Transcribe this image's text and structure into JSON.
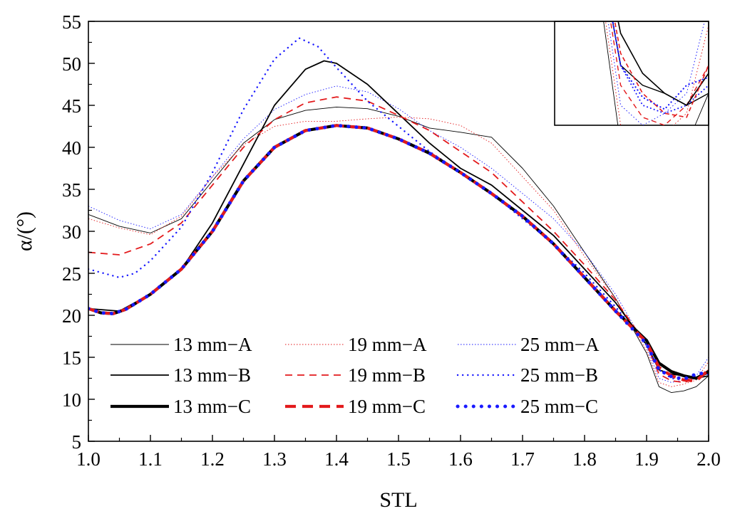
{
  "chart_data": {
    "type": "line",
    "title": "",
    "xlabel": "STL",
    "ylabel": "α/(°)",
    "xlim": [
      1.0,
      2.0
    ],
    "ylim": [
      5,
      55
    ],
    "xticks": [
      "1.0",
      "1.1",
      "1.2",
      "1.3",
      "1.4",
      "1.5",
      "1.6",
      "1.7",
      "1.8",
      "1.9",
      "2.0"
    ],
    "yticks": [
      "5",
      "10",
      "15",
      "20",
      "25",
      "30",
      "35",
      "40",
      "45",
      "50",
      "55"
    ],
    "grid": false,
    "legend_position": "bottom-left",
    "inset": true,
    "series": [
      {
        "name": "13 mm−A",
        "color": "#000000",
        "style": "thin-solid",
        "x": [
          1.0,
          1.05,
          1.1,
          1.15,
          1.2,
          1.25,
          1.3,
          1.35,
          1.4,
          1.45,
          1.5,
          1.55,
          1.6,
          1.65,
          1.7,
          1.75,
          1.8,
          1.85,
          1.9,
          1.92,
          1.94,
          1.96,
          1.98,
          2.0
        ],
        "y": [
          32.0,
          30.6,
          29.8,
          31.5,
          36.0,
          40.5,
          43.3,
          44.4,
          44.8,
          44.6,
          43.7,
          42.3,
          41.8,
          41.2,
          37.5,
          33.0,
          27.5,
          22.0,
          15.5,
          11.5,
          10.8,
          11.0,
          11.5,
          12.8
        ]
      },
      {
        "name": "19 mm−A",
        "color": "#e31a1c",
        "style": "thin-dotted",
        "x": [
          1.0,
          1.05,
          1.1,
          1.15,
          1.2,
          1.25,
          1.3,
          1.35,
          1.4,
          1.45,
          1.5,
          1.55,
          1.6,
          1.65,
          1.7,
          1.75,
          1.8,
          1.85,
          1.9,
          1.92,
          1.94,
          1.96,
          1.98,
          2.0
        ],
        "y": [
          31.5,
          30.4,
          29.6,
          31.8,
          36.5,
          40.3,
          42.5,
          43.1,
          43.1,
          43.4,
          43.6,
          43.4,
          42.6,
          40.5,
          36.5,
          32.5,
          27.0,
          22.0,
          15.8,
          12.0,
          11.5,
          11.8,
          12.3,
          14.5
        ]
      },
      {
        "name": "25 mm−A",
        "color": "#1a1aff",
        "style": "thin-dotted",
        "x": [
          1.0,
          1.05,
          1.1,
          1.15,
          1.2,
          1.25,
          1.3,
          1.35,
          1.4,
          1.45,
          1.5,
          1.55,
          1.6,
          1.65,
          1.7,
          1.75,
          1.8,
          1.85,
          1.9,
          1.92,
          1.94,
          1.96,
          1.98,
          2.0
        ],
        "y": [
          33.0,
          31.3,
          30.3,
          32.0,
          36.5,
          41.0,
          44.5,
          46.3,
          47.3,
          46.6,
          44.6,
          42.0,
          40.0,
          37.5,
          34.5,
          31.5,
          27.5,
          22.5,
          16.2,
          12.5,
          12.0,
          12.3,
          12.8,
          15.0
        ]
      },
      {
        "name": "13 mm−B",
        "color": "#000000",
        "style": "medium-solid",
        "x": [
          1.0,
          1.05,
          1.1,
          1.15,
          1.2,
          1.25,
          1.3,
          1.35,
          1.38,
          1.4,
          1.45,
          1.5,
          1.55,
          1.6,
          1.65,
          1.7,
          1.75,
          1.8,
          1.85,
          1.9,
          1.92,
          1.94,
          1.96,
          1.98,
          2.0
        ],
        "y": [
          20.8,
          20.5,
          22.5,
          25.5,
          31.0,
          38.0,
          45.0,
          49.3,
          50.3,
          50.0,
          47.5,
          44.0,
          40.5,
          37.5,
          35.5,
          32.5,
          29.5,
          25.5,
          21.5,
          16.5,
          13.5,
          13.0,
          12.8,
          12.5,
          12.8
        ]
      },
      {
        "name": "19 mm−B",
        "color": "#e31a1c",
        "style": "medium-dashed",
        "x": [
          1.0,
          1.05,
          1.1,
          1.15,
          1.2,
          1.25,
          1.3,
          1.35,
          1.4,
          1.45,
          1.5,
          1.55,
          1.6,
          1.65,
          1.7,
          1.75,
          1.8,
          1.85,
          1.9,
          1.92,
          1.94,
          1.96,
          1.98,
          2.0
        ],
        "y": [
          27.5,
          27.2,
          28.5,
          31.0,
          35.5,
          40.0,
          43.3,
          45.3,
          46.0,
          45.5,
          43.8,
          42.0,
          39.5,
          37.0,
          33.5,
          30.0,
          26.0,
          21.8,
          16.5,
          13.0,
          12.2,
          12.0,
          12.5,
          13.5
        ]
      },
      {
        "name": "25 mm−B",
        "color": "#1a1aff",
        "style": "medium-dotted",
        "x": [
          1.0,
          1.025,
          1.05,
          1.075,
          1.1,
          1.15,
          1.2,
          1.25,
          1.3,
          1.34,
          1.37,
          1.4,
          1.45,
          1.5,
          1.55,
          1.6,
          1.65,
          1.7,
          1.75,
          1.8,
          1.85,
          1.9,
          1.92,
          1.94,
          1.96,
          1.98,
          2.0
        ],
        "y": [
          25.5,
          25.0,
          24.5,
          25.0,
          26.5,
          30.5,
          37.0,
          44.5,
          50.5,
          53.0,
          52.0,
          49.5,
          45.5,
          42.5,
          39.5,
          37.0,
          34.5,
          31.5,
          28.5,
          25.0,
          21.0,
          16.5,
          13.5,
          12.5,
          12.3,
          12.5,
          13.0
        ]
      },
      {
        "name": "13 mm−C",
        "color": "#000000",
        "style": "thick-solid",
        "x": [
          1.0,
          1.02,
          1.04,
          1.06,
          1.1,
          1.15,
          1.2,
          1.25,
          1.3,
          1.35,
          1.4,
          1.45,
          1.5,
          1.55,
          1.6,
          1.65,
          1.7,
          1.75,
          1.8,
          1.85,
          1.9,
          1.92,
          1.94,
          1.96,
          1.98,
          2.0
        ],
        "y": [
          20.8,
          20.3,
          20.2,
          20.7,
          22.5,
          25.5,
          30.0,
          36.0,
          40.0,
          42.0,
          42.6,
          42.3,
          41.0,
          39.3,
          37.0,
          34.5,
          31.8,
          28.5,
          24.5,
          20.5,
          17.0,
          14.3,
          13.3,
          12.8,
          12.5,
          13.3
        ]
      },
      {
        "name": "19 mm−C",
        "color": "#e31a1c",
        "style": "thick-dashed",
        "x": [
          1.0,
          1.02,
          1.04,
          1.06,
          1.1,
          1.15,
          1.2,
          1.25,
          1.3,
          1.35,
          1.4,
          1.45,
          1.5,
          1.55,
          1.6,
          1.65,
          1.7,
          1.75,
          1.8,
          1.85,
          1.9,
          1.92,
          1.94,
          1.96,
          1.98,
          2.0
        ],
        "y": [
          20.8,
          20.3,
          20.2,
          20.7,
          22.5,
          25.5,
          30.0,
          36.0,
          40.0,
          42.0,
          42.6,
          42.3,
          41.0,
          39.3,
          37.0,
          34.5,
          31.8,
          28.5,
          24.5,
          20.5,
          16.8,
          13.8,
          12.8,
          12.3,
          12.2,
          13.5
        ]
      },
      {
        "name": "25 mm−C",
        "color": "#1a1aff",
        "style": "thick-dotted",
        "x": [
          1.0,
          1.02,
          1.04,
          1.06,
          1.1,
          1.15,
          1.2,
          1.25,
          1.3,
          1.35,
          1.4,
          1.45,
          1.5,
          1.55,
          1.6,
          1.65,
          1.7,
          1.75,
          1.8,
          1.85,
          1.9,
          1.92,
          1.94,
          1.96,
          1.98,
          2.0
        ],
        "y": [
          20.8,
          20.3,
          20.2,
          20.7,
          22.5,
          25.5,
          30.0,
          36.0,
          40.0,
          42.0,
          42.6,
          42.3,
          41.0,
          39.3,
          37.0,
          34.5,
          31.8,
          28.5,
          24.5,
          20.5,
          16.6,
          13.5,
          12.7,
          12.4,
          13.0,
          13.2
        ]
      }
    ]
  }
}
